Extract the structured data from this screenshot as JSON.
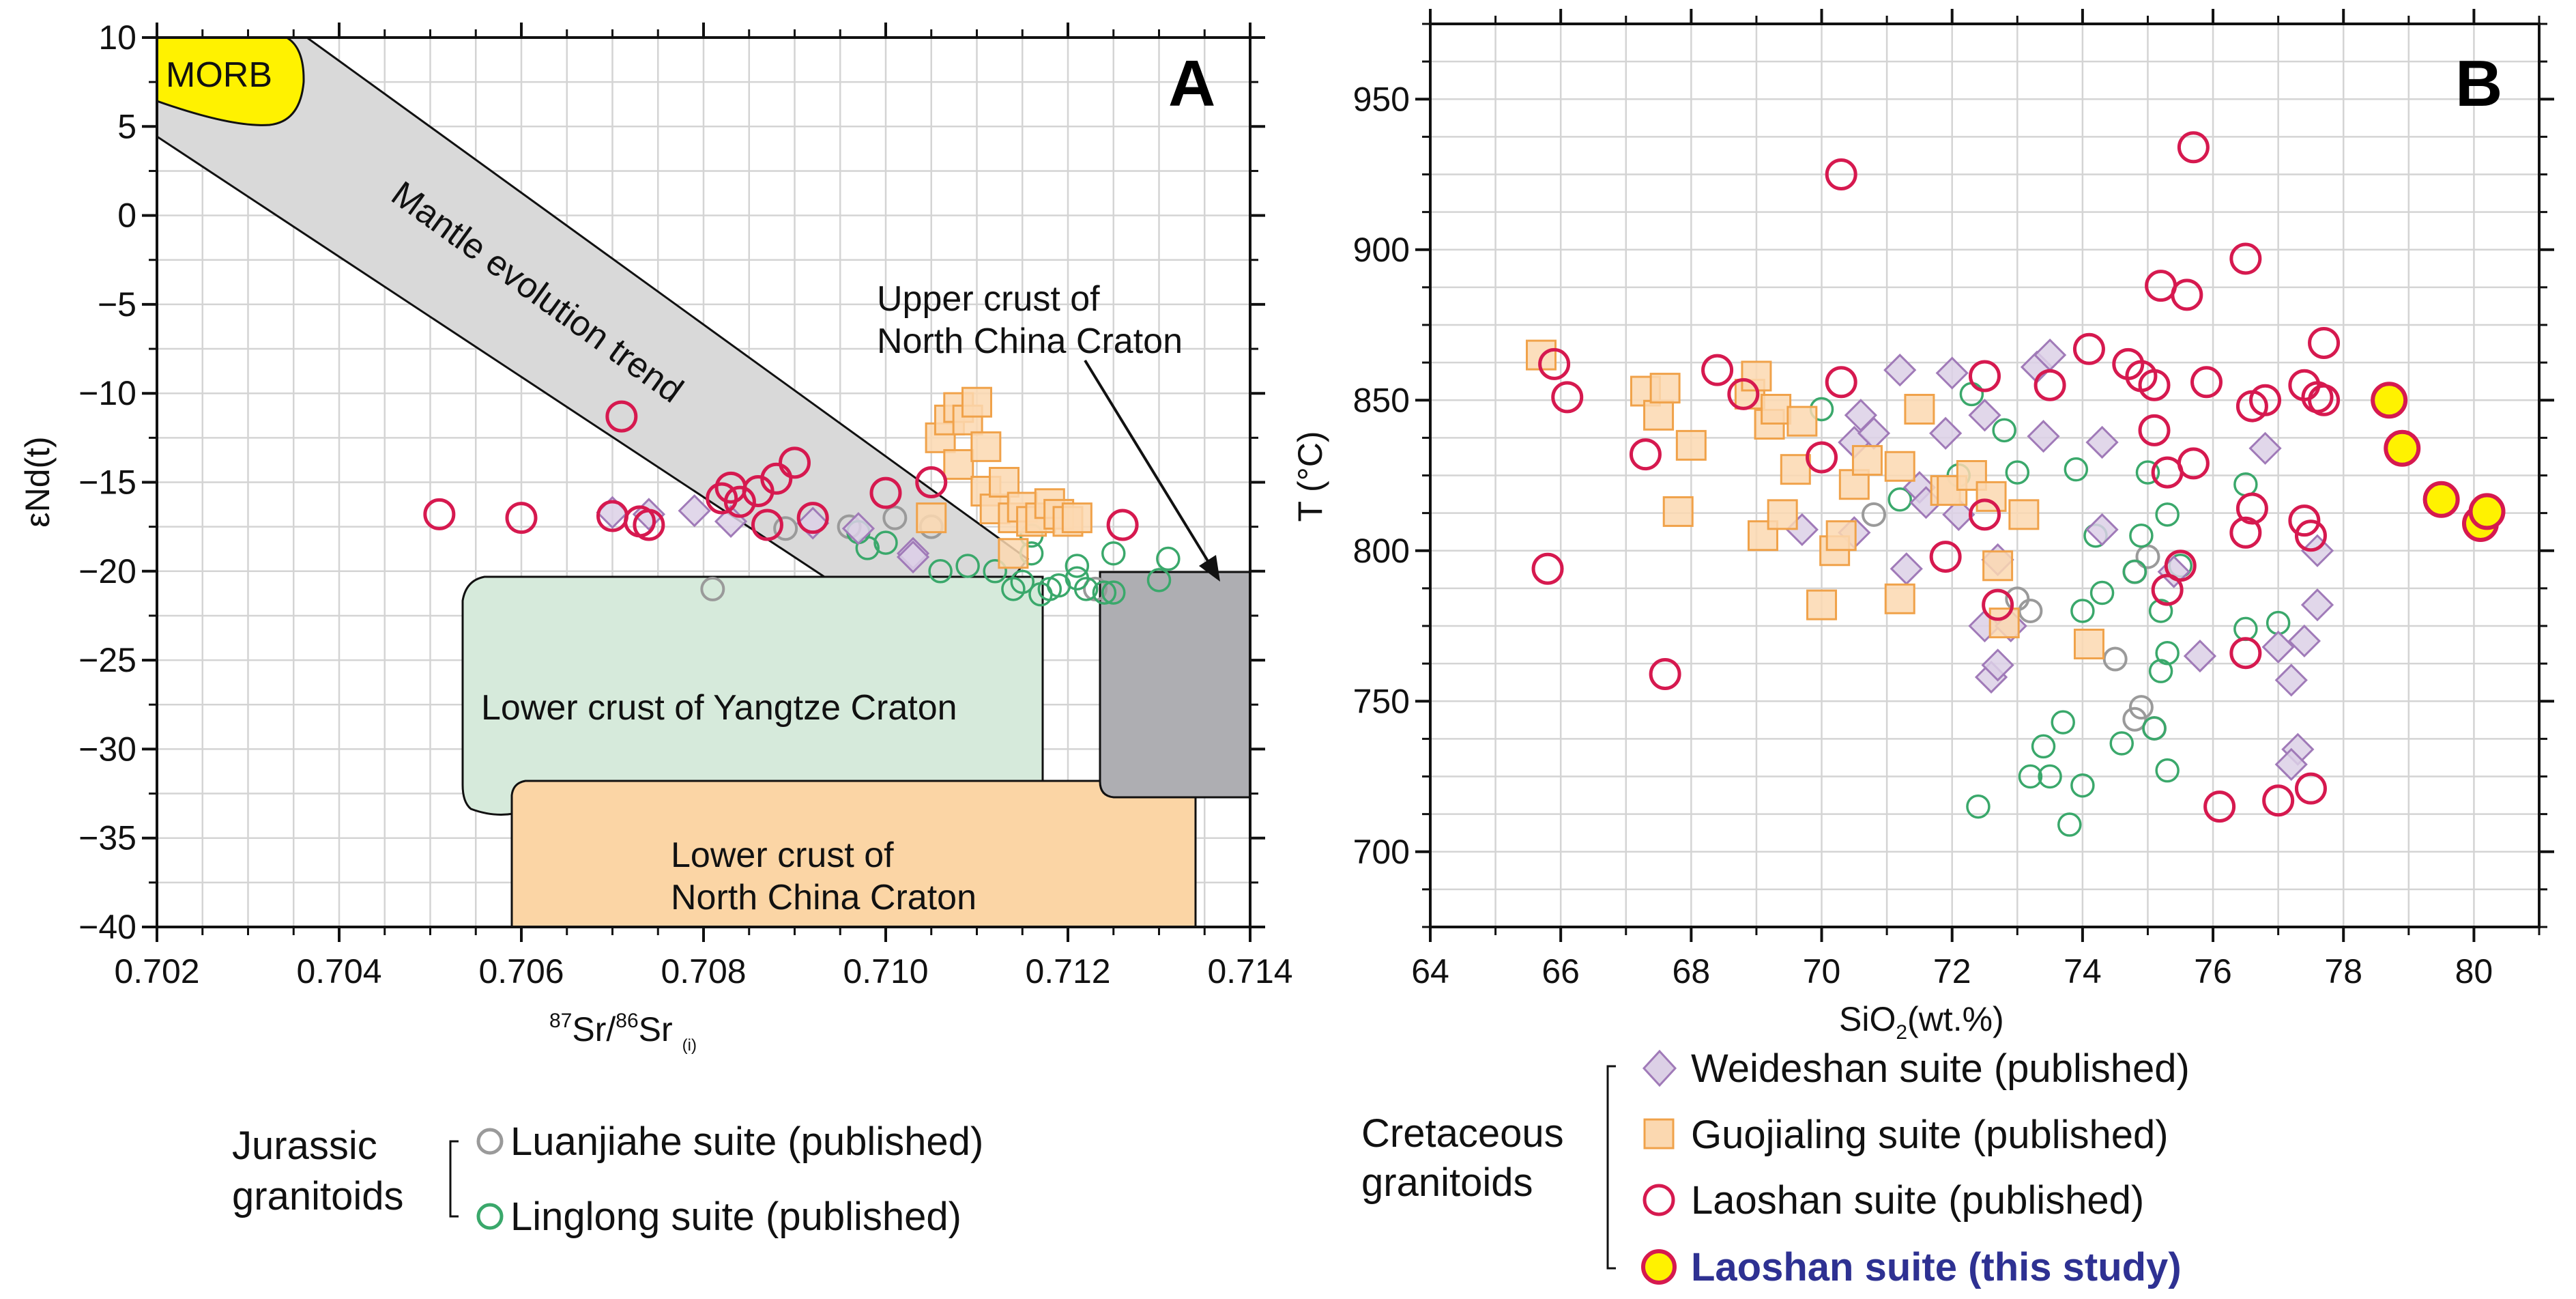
{
  "colors": {
    "luanjiahe": "#9a9a9a",
    "linglong": "#3aa86b",
    "weideshan_fill": "#dcd0e6",
    "weideshan_stroke": "#a07ab8",
    "guojialing_fill": "#fbd8b0",
    "guojialing_stroke": "#f0a24a",
    "laoshan": "#d6194f",
    "this_study_fill": "#fff200",
    "morb": "#fff200",
    "mantle_band": "#d9d9d9",
    "yangtze": "#d6eadb",
    "nc_lower": "#fbd5a5",
    "nc_upper": "#aeaeb2",
    "this_study_label": "#2e3192"
  },
  "chart_data": [
    {
      "panel": "A",
      "type": "scatter",
      "xlabel": "87Sr/86Sr(i)",
      "xlabel_parts": {
        "sup1": "87",
        "base1": "Sr/",
        "sup2": "86",
        "base2": "Sr",
        "sub": "(i)"
      },
      "ylabel": "εNd(t)",
      "xlim": [
        0.702,
        0.714
      ],
      "ylim": [
        -40,
        10
      ],
      "xticks": [
        "0.702",
        "0.704",
        "0.706",
        "0.708",
        "0.710",
        "0.712",
        "0.714"
      ],
      "yticks": [
        "10",
        "5",
        "0",
        "−5",
        "−10",
        "−15",
        "−20",
        "−25",
        "−30",
        "−35",
        "−40"
      ],
      "fields": {
        "morb": "MORB",
        "mantle_line1": "Mantle evolution trend",
        "yangtze": "Lower crust of Yangtze Craton",
        "nc_lower_line1": "Lower crust of",
        "nc_lower_line2": "North China Craton",
        "nc_upper_line1": "Upper crust of",
        "nc_upper_line2": "North China Craton"
      },
      "series": [
        {
          "name": "Luanjiahe suite (published)",
          "points": [
            [
              0.7081,
              -21
            ],
            [
              0.7089,
              -17.6
            ],
            [
              0.7096,
              -17.5
            ],
            [
              0.7101,
              -17
            ],
            [
              0.7105,
              -17.5
            ],
            [
              0.7123,
              -21
            ]
          ]
        },
        {
          "name": "Linglong suite (published)",
          "points": [
            [
              0.7097,
              -17.8
            ],
            [
              0.7098,
              -18.7
            ],
            [
              0.71,
              -18.4
            ],
            [
              0.7106,
              -20
            ],
            [
              0.7109,
              -19.7
            ],
            [
              0.7112,
              -20
            ],
            [
              0.7114,
              -21
            ],
            [
              0.7115,
              -20.6
            ],
            [
              0.7116,
              -19
            ],
            [
              0.7116,
              -18
            ],
            [
              0.7117,
              -21.3
            ],
            [
              0.7118,
              -21
            ],
            [
              0.7119,
              -20.8
            ],
            [
              0.7121,
              -20.4
            ],
            [
              0.7121,
              -19.7
            ],
            [
              0.7122,
              -21
            ],
            [
              0.7124,
              -21.2
            ],
            [
              0.7125,
              -21.2
            ],
            [
              0.713,
              -20.5
            ],
            [
              0.7131,
              -19.3
            ],
            [
              0.7125,
              -19
            ]
          ]
        },
        {
          "name": "Weideshan suite (published)",
          "points": [
            [
              0.707,
              -16.7
            ],
            [
              0.7074,
              -16.8
            ],
            [
              0.7079,
              -16.6
            ],
            [
              0.7083,
              -17.2
            ],
            [
              0.7092,
              -17.3
            ],
            [
              0.7097,
              -17.6
            ],
            [
              0.7103,
              -19
            ],
            [
              0.7103,
              -19.2
            ]
          ]
        },
        {
          "name": "Guojialing suite (published)",
          "points": [
            [
              0.7106,
              -12.5
            ],
            [
              0.7107,
              -11.5
            ],
            [
              0.7108,
              -10.8
            ],
            [
              0.7108,
              -14
            ],
            [
              0.7109,
              -11.5
            ],
            [
              0.711,
              -10.5
            ],
            [
              0.7111,
              -13
            ],
            [
              0.7111,
              -15.5
            ],
            [
              0.7112,
              -16.5
            ],
            [
              0.7113,
              -15
            ],
            [
              0.7114,
              -17
            ],
            [
              0.7115,
              -16.4
            ],
            [
              0.7116,
              -17.2
            ],
            [
              0.7117,
              -17
            ],
            [
              0.7118,
              -16.2
            ],
            [
              0.7119,
              -16.8
            ],
            [
              0.712,
              -17.2
            ],
            [
              0.7121,
              -17
            ],
            [
              0.7114,
              -19
            ],
            [
              0.7105,
              -17
            ]
          ]
        },
        {
          "name": "Laoshan suite (published)",
          "points": [
            [
              0.7051,
              -16.8
            ],
            [
              0.706,
              -17
            ],
            [
              0.707,
              -16.9
            ],
            [
              0.7071,
              -11.3
            ],
            [
              0.7073,
              -17.2
            ],
            [
              0.7074,
              -17.4
            ],
            [
              0.7082,
              -15.9
            ],
            [
              0.7083,
              -15.3
            ],
            [
              0.7084,
              -16.1
            ],
            [
              0.7086,
              -15.5
            ],
            [
              0.7087,
              -17.4
            ],
            [
              0.7088,
              -14.8
            ],
            [
              0.709,
              -13.9
            ],
            [
              0.7092,
              -17
            ],
            [
              0.71,
              -15.6
            ],
            [
              0.7105,
              -15
            ],
            [
              0.7126,
              -17.4
            ]
          ]
        }
      ]
    },
    {
      "panel": "B",
      "type": "scatter",
      "xlabel": "SiO2(wt.%)",
      "xlabel_parts": {
        "base1": "SiO",
        "sub": "2",
        "base2": "(wt.%)"
      },
      "ylabel": "T (°C)",
      "xlim": [
        64,
        81
      ],
      "ylim": [
        675,
        975
      ],
      "xticks": [
        "64",
        "66",
        "68",
        "70",
        "72",
        "74",
        "76",
        "78",
        "80"
      ],
      "yticks": [
        "700",
        "750",
        "800",
        "850",
        "900",
        "950"
      ],
      "series": [
        {
          "name": "Luanjiahe suite (published)",
          "points": [
            [
              70.8,
              812
            ],
            [
              73,
              784
            ],
            [
              73.2,
              780
            ],
            [
              74.5,
              764
            ],
            [
              74.8,
              744
            ],
            [
              74.9,
              748
            ],
            [
              75.1,
              741
            ],
            [
              75,
              798
            ],
            [
              74.8,
              793
            ]
          ]
        },
        {
          "name": "Linglong suite (published)",
          "points": [
            [
              70,
              847
            ],
            [
              71.2,
              817
            ],
            [
              72.1,
              825
            ],
            [
              72.3,
              852
            ],
            [
              72.4,
              715
            ],
            [
              72.8,
              840
            ],
            [
              73,
              826
            ],
            [
              73.2,
              725
            ],
            [
              73.4,
              735
            ],
            [
              73.5,
              725
            ],
            [
              73.7,
              743
            ],
            [
              73.8,
              709
            ],
            [
              73.9,
              827
            ],
            [
              74,
              780
            ],
            [
              74,
              722
            ],
            [
              74.2,
              805
            ],
            [
              74.3,
              786
            ],
            [
              74.6,
              736
            ],
            [
              74.8,
              793
            ],
            [
              74.9,
              805
            ],
            [
              75,
              826
            ],
            [
              75.1,
              741
            ],
            [
              75.2,
              760
            ],
            [
              75.3,
              766
            ],
            [
              75.3,
              727
            ],
            [
              75.3,
              812
            ],
            [
              75.5,
              795
            ],
            [
              76.5,
              774
            ],
            [
              76.5,
              822
            ],
            [
              77,
              776
            ],
            [
              75.2,
              780
            ]
          ]
        },
        {
          "name": "Weideshan suite (published)",
          "points": [
            [
              69.7,
              807
            ],
            [
              70.5,
              836
            ],
            [
              70.6,
              845
            ],
            [
              70.8,
              839
            ],
            [
              71.2,
              860
            ],
            [
              71.3,
              794
            ],
            [
              71.5,
              821
            ],
            [
              71.6,
              816
            ],
            [
              71.9,
              839
            ],
            [
              72,
              859
            ],
            [
              72.1,
              812
            ],
            [
              72.5,
              775
            ],
            [
              72.6,
              758
            ],
            [
              72.7,
              762
            ],
            [
              72.7,
              797
            ],
            [
              72.9,
              775
            ],
            [
              73.3,
              861
            ],
            [
              73.4,
              838
            ],
            [
              73.5,
              865
            ],
            [
              74.3,
              836
            ],
            [
              74.3,
              807
            ],
            [
              75.4,
              793
            ],
            [
              75.8,
              765
            ],
            [
              76.8,
              834
            ],
            [
              77,
              768
            ],
            [
              77.2,
              757
            ],
            [
              77.3,
              734
            ],
            [
              77.4,
              770
            ],
            [
              77.6,
              782
            ],
            [
              77.6,
              800
            ],
            [
              77.2,
              729
            ],
            [
              72.5,
              845
            ],
            [
              70.5,
              806
            ]
          ]
        },
        {
          "name": "Guojialing suite (published)",
          "points": [
            [
              65.7,
              865
            ],
            [
              67.3,
              853
            ],
            [
              67.5,
              845
            ],
            [
              67.6,
              854
            ],
            [
              68,
              835
            ],
            [
              67.8,
              813
            ],
            [
              68.9,
              852
            ],
            [
              69,
              858
            ],
            [
              69.1,
              805
            ],
            [
              69.2,
              842
            ],
            [
              69.3,
              847
            ],
            [
              69.4,
              812
            ],
            [
              69.6,
              827
            ],
            [
              69.7,
              843
            ],
            [
              70,
              782
            ],
            [
              70.2,
              800
            ],
            [
              70.3,
              805
            ],
            [
              70.5,
              822
            ],
            [
              70.7,
              830
            ],
            [
              71.2,
              828
            ],
            [
              71.2,
              784
            ],
            [
              71.5,
              847
            ],
            [
              71.9,
              820
            ],
            [
              72,
              820
            ],
            [
              72.3,
              825
            ],
            [
              72.6,
              818
            ],
            [
              72.8,
              776
            ],
            [
              73.1,
              812
            ],
            [
              74.1,
              769
            ],
            [
              72.7,
              795
            ]
          ]
        },
        {
          "name": "Laoshan suite (published)",
          "points": [
            [
              65.8,
              794
            ],
            [
              65.9,
              862
            ],
            [
              66.1,
              851
            ],
            [
              67.3,
              832
            ],
            [
              67.6,
              759
            ],
            [
              68.4,
              860
            ],
            [
              68.8,
              852
            ],
            [
              70,
              831
            ],
            [
              70.3,
              856
            ],
            [
              70.3,
              925
            ],
            [
              71.9,
              798
            ],
            [
              72.5,
              858
            ],
            [
              72.5,
              812
            ],
            [
              72.7,
              782
            ],
            [
              73.5,
              855
            ],
            [
              74.1,
              867
            ],
            [
              74.7,
              862
            ],
            [
              74.9,
              858
            ],
            [
              75.1,
              855
            ],
            [
              75.1,
              840
            ],
            [
              75.2,
              888
            ],
            [
              75.3,
              826
            ],
            [
              75.3,
              787
            ],
            [
              75.5,
              795
            ],
            [
              75.6,
              885
            ],
            [
              75.7,
              934
            ],
            [
              75.7,
              829
            ],
            [
              75.9,
              856
            ],
            [
              76.1,
              715
            ],
            [
              76.5,
              897
            ],
            [
              76.5,
              806
            ],
            [
              76.5,
              766
            ],
            [
              76.6,
              848
            ],
            [
              76.6,
              814
            ],
            [
              76.8,
              850
            ],
            [
              77,
              717
            ],
            [
              77.4,
              855
            ],
            [
              77.4,
              810
            ],
            [
              77.5,
              805
            ],
            [
              77.5,
              721
            ],
            [
              77.6,
              851
            ],
            [
              77.7,
              850
            ],
            [
              77.7,
              869
            ]
          ]
        },
        {
          "name": "Laoshan suite (this study)",
          "points": [
            [
              78.7,
              850
            ],
            [
              78.9,
              834
            ],
            [
              79.5,
              817
            ],
            [
              80.1,
              809
            ],
            [
              80.2,
              813
            ]
          ]
        }
      ]
    }
  ],
  "legend_left": {
    "group_line1": "Jurassic",
    "group_line2": "granitoids",
    "items": [
      "Luanjiahe suite (published)",
      "Linglong suite (published)"
    ]
  },
  "legend_right": {
    "group_line1": "Cretaceous",
    "group_line2": "granitoids",
    "items": [
      "Weideshan suite (published)",
      "Guojialing suite (published)",
      "Laoshan suite (published)",
      "Laoshan suite (this study)"
    ]
  }
}
